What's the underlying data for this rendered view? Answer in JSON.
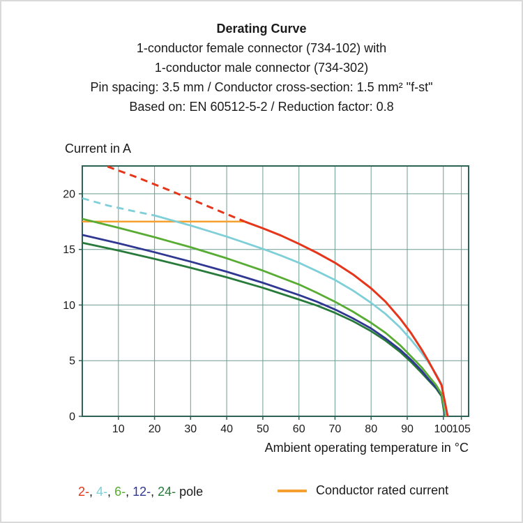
{
  "header": {
    "title": "Derating Curve",
    "subtitles": [
      "1-conductor female connector (734-102) with",
      "1-conductor male connector (734-302)",
      "Pin spacing: 3.5 mm / Conductor cross-section: 1.5 mm² \"f-st\"",
      "Based on: EN 60512-5-2 / Reduction factor: 0.8"
    ]
  },
  "chart_data": {
    "type": "line",
    "title": "Derating Curve",
    "y_axis_title": "Current in A",
    "x_axis_title": "Ambient operating temperature in °C",
    "x_range": [
      0,
      107
    ],
    "y_range": [
      0,
      22.5
    ],
    "x_ticks": [
      10,
      20,
      30,
      40,
      50,
      60,
      70,
      80,
      90,
      100,
      105
    ],
    "y_ticks": [
      0,
      5,
      10,
      15,
      20
    ],
    "grid": true,
    "legend_position": "bottom",
    "colors": {
      "frame": "#2e6156",
      "grid": "#6e9c91"
    },
    "series": [
      {
        "name": "Conductor rated current",
        "color": "#f6a02f",
        "width": 2.5,
        "segments": [
          {
            "style": "solid",
            "points": [
              [
                0,
                17.5
              ],
              [
                45,
                17.5
              ]
            ]
          }
        ]
      },
      {
        "name": "24-pole",
        "color": "#287a3b",
        "width": 2.8,
        "segments": [
          {
            "style": "solid",
            "points": [
              [
                0,
                15.6
              ],
              [
                10,
                14.9
              ],
              [
                20,
                14.15
              ],
              [
                30,
                13.35
              ],
              [
                40,
                12.5
              ],
              [
                50,
                11.55
              ],
              [
                60,
                10.5
              ],
              [
                65,
                9.95
              ],
              [
                70,
                9.3
              ],
              [
                75,
                8.55
              ],
              [
                80,
                7.65
              ],
              [
                84,
                6.8
              ],
              [
                88,
                5.8
              ],
              [
                91,
                4.9
              ],
              [
                94,
                3.9
              ],
              [
                96,
                3.2
              ],
              [
                98,
                2.5
              ],
              [
                99.5,
                1.8
              ],
              [
                100.4,
                0
              ]
            ]
          }
        ]
      },
      {
        "name": "12-pole",
        "color": "#2f3791",
        "width": 2.8,
        "segments": [
          {
            "style": "solid",
            "points": [
              [
                0,
                16.3
              ],
              [
                10,
                15.55
              ],
              [
                20,
                14.75
              ],
              [
                30,
                13.9
              ],
              [
                40,
                13.0
              ],
              [
                50,
                12.0
              ],
              [
                60,
                10.9
              ],
              [
                65,
                10.3
              ],
              [
                70,
                9.6
              ],
              [
                75,
                8.8
              ],
              [
                80,
                7.9
              ],
              [
                84,
                7.0
              ],
              [
                88,
                6.0
              ],
              [
                91,
                5.1
              ],
              [
                94,
                4.1
              ],
              [
                96,
                3.3
              ],
              [
                98,
                2.6
              ],
              [
                99.5,
                1.9
              ],
              [
                100.5,
                0
              ]
            ]
          }
        ]
      },
      {
        "name": "6-pole",
        "color": "#58ac33",
        "width": 2.8,
        "segments": [
          {
            "style": "solid",
            "points": [
              [
                0,
                17.75
              ],
              [
                10,
                16.95
              ],
              [
                20,
                16.1
              ],
              [
                30,
                15.2
              ],
              [
                40,
                14.2
              ],
              [
                50,
                13.1
              ],
              [
                60,
                11.85
              ],
              [
                65,
                11.1
              ],
              [
                70,
                10.3
              ],
              [
                75,
                9.4
              ],
              [
                80,
                8.4
              ],
              [
                84,
                7.5
              ],
              [
                88,
                6.4
              ],
              [
                91,
                5.4
              ],
              [
                94,
                4.4
              ],
              [
                96,
                3.6
              ],
              [
                98,
                2.8
              ],
              [
                99.5,
                2.0
              ],
              [
                100.6,
                0
              ]
            ]
          }
        ]
      },
      {
        "name": "4-pole",
        "color": "#7ecfd8",
        "width": 2.8,
        "segments": [
          {
            "style": "dashed",
            "points": [
              [
                0,
                19.6
              ],
              [
                7,
                18.95
              ],
              [
                14,
                18.45
              ],
              [
                20,
                18.05
              ]
            ]
          },
          {
            "style": "solid",
            "points": [
              [
                20,
                18.05
              ],
              [
                25,
                17.6
              ],
              [
                30,
                17.15
              ],
              [
                35,
                16.65
              ],
              [
                40,
                16.15
              ],
              [
                45,
                15.6
              ],
              [
                50,
                15.05
              ],
              [
                55,
                14.45
              ],
              [
                60,
                13.8
              ],
              [
                65,
                13.05
              ],
              [
                70,
                12.25
              ],
              [
                75,
                11.3
              ],
              [
                80,
                10.2
              ],
              [
                84,
                9.2
              ],
              [
                88,
                8.0
              ],
              [
                91,
                6.9
              ],
              [
                94,
                5.7
              ],
              [
                96,
                4.8
              ],
              [
                98,
                3.8
              ],
              [
                99.5,
                2.9
              ],
              [
                100.9,
                0
              ]
            ]
          }
        ]
      },
      {
        "name": "2-pole",
        "color": "#e5361b",
        "width": 3,
        "segments": [
          {
            "style": "dashed",
            "points": [
              [
                7,
                22.45
              ],
              [
                15,
                21.5
              ],
              [
                25,
                20.2
              ],
              [
                35,
                18.85
              ],
              [
                45,
                17.5
              ]
            ]
          },
          {
            "style": "solid",
            "points": [
              [
                45,
                17.5
              ],
              [
                50,
                16.9
              ],
              [
                55,
                16.25
              ],
              [
                60,
                15.5
              ],
              [
                65,
                14.7
              ],
              [
                70,
                13.8
              ],
              [
                75,
                12.75
              ],
              [
                80,
                11.5
              ],
              [
                84,
                10.3
              ],
              [
                88,
                8.8
              ],
              [
                91,
                7.5
              ],
              [
                94,
                6.0
              ],
              [
                96,
                4.9
              ],
              [
                98,
                3.7
              ],
              [
                99.5,
                2.8
              ],
              [
                101.2,
                0
              ]
            ]
          }
        ]
      }
    ]
  },
  "legend": {
    "poles": [
      {
        "label": "2-",
        "color": "#e5361b"
      },
      {
        "label": "4-",
        "color": "#7ecfd8"
      },
      {
        "label": "6-",
        "color": "#58ac33"
      },
      {
        "label": "12-",
        "color": "#2f3791"
      },
      {
        "label": "24-",
        "color": "#287a3b"
      }
    ],
    "separator": ", ",
    "poles_suffix": "pole",
    "rated": {
      "label": "Conductor rated current",
      "color": "#f6a02f"
    }
  }
}
